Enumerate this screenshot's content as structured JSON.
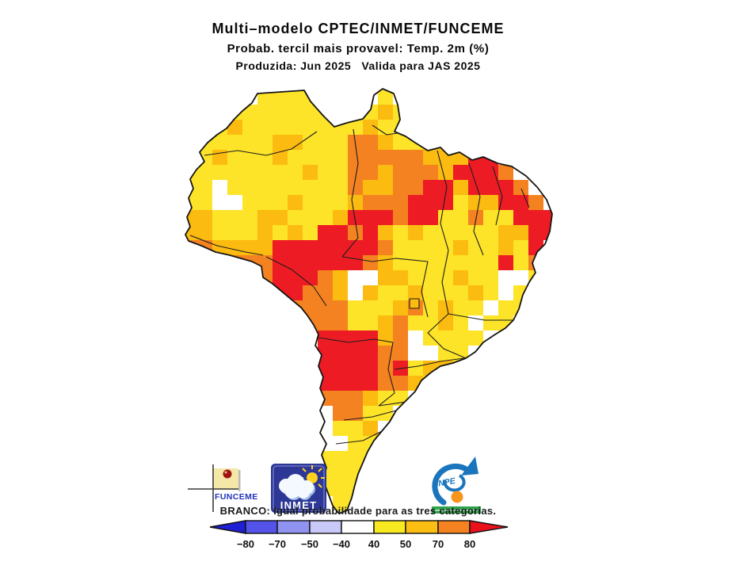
{
  "title": {
    "line1": "Multi–modelo CPTEC/INMET/FUNCEME",
    "line2": "Probab. tercil mais provavel: Temp. 2m (%)",
    "line3": "Produzida: Jun 2025   Valida para JAS 2025"
  },
  "legend_note": "BRANCO: Igual probabilidade para as tres categorias.",
  "colorbar": {
    "ticks": [
      "−80",
      "−70",
      "−50",
      "−40",
      "40",
      "50",
      "70",
      "80"
    ],
    "segments": [
      {
        "kind": "arrow-left",
        "color": "#1F1FD3"
      },
      {
        "kind": "rect",
        "range": "-80 to -70",
        "color": "#5353E9"
      },
      {
        "kind": "rect",
        "range": "-70 to -50",
        "color": "#9193F0"
      },
      {
        "kind": "rect",
        "range": "-50 to -40",
        "color": "#C8C9F8"
      },
      {
        "kind": "rect",
        "range": "-40 to 40",
        "color": "#FFFFFF"
      },
      {
        "kind": "rect",
        "range": "40 to 50",
        "color": "#F8E921"
      },
      {
        "kind": "rect",
        "range": "50 to 70",
        "color": "#FCBE13"
      },
      {
        "kind": "rect",
        "range": "70 to 80",
        "color": "#F58220"
      },
      {
        "kind": "arrow-right",
        "color": "#E8111C"
      }
    ]
  },
  "map": {
    "description": "Brazil tercile-probability grid map, 2m temperature, JAS 2025",
    "palette": {
      "y": "#FDE428",
      "g": "#FBBB10",
      "o": "#F58220",
      "r": "#ED1C24",
      "w": "#FFFFFF"
    },
    "grid": [
      ".....yyyy....y...........",
      "...yyyyyyy..ygy..........",
      "..ygyyyyyyyygyy..........",
      ".yyyyyggyyyoogyyggg......",
      "yygyyygyyyyooooogggrr....",
      "yyyyyyyygyyoogooogrrro...",
      "yywyyyyyyyyoggoorrgrrro..",
      "yywwyyygyyygooorrryggrro.",
      "ggyyyggyyygrrrorryyoyyrrr",
      "ggyyygygyrrorgygyyyyyggrr",
      "ooggggrrrrrrroyyyygyygyr.",
      ".ooooorrrrrrogyyyyyyyryo.",
      "....oorrrogwwggyyygyywwy.",
      ".....orroogwgyygyyygywyy.",
      ".......ooooyyygoygyywyy..",
      "........oooyygoyygywyy...",
      ".........rrrrgowyyyywy...",
      ".........rrrroowwyywy....",
      ".........rrrroryggywy....",
      ".........rrrroogyygy.....",
      ".........ooogyywyy.......",
      "..........ooyywyy........",
      "..........yygwyy.........",
      "...........yygy..........",
      ".........yyyyy...........",
      ".........yyygy...........",
      ".........yyy.............",
      "..........yy............."
    ]
  },
  "logos": {
    "funceme": {
      "label": "FUNCEME"
    },
    "inmet": {
      "label": "INMET"
    },
    "inpe": {
      "label": "INPE"
    }
  }
}
